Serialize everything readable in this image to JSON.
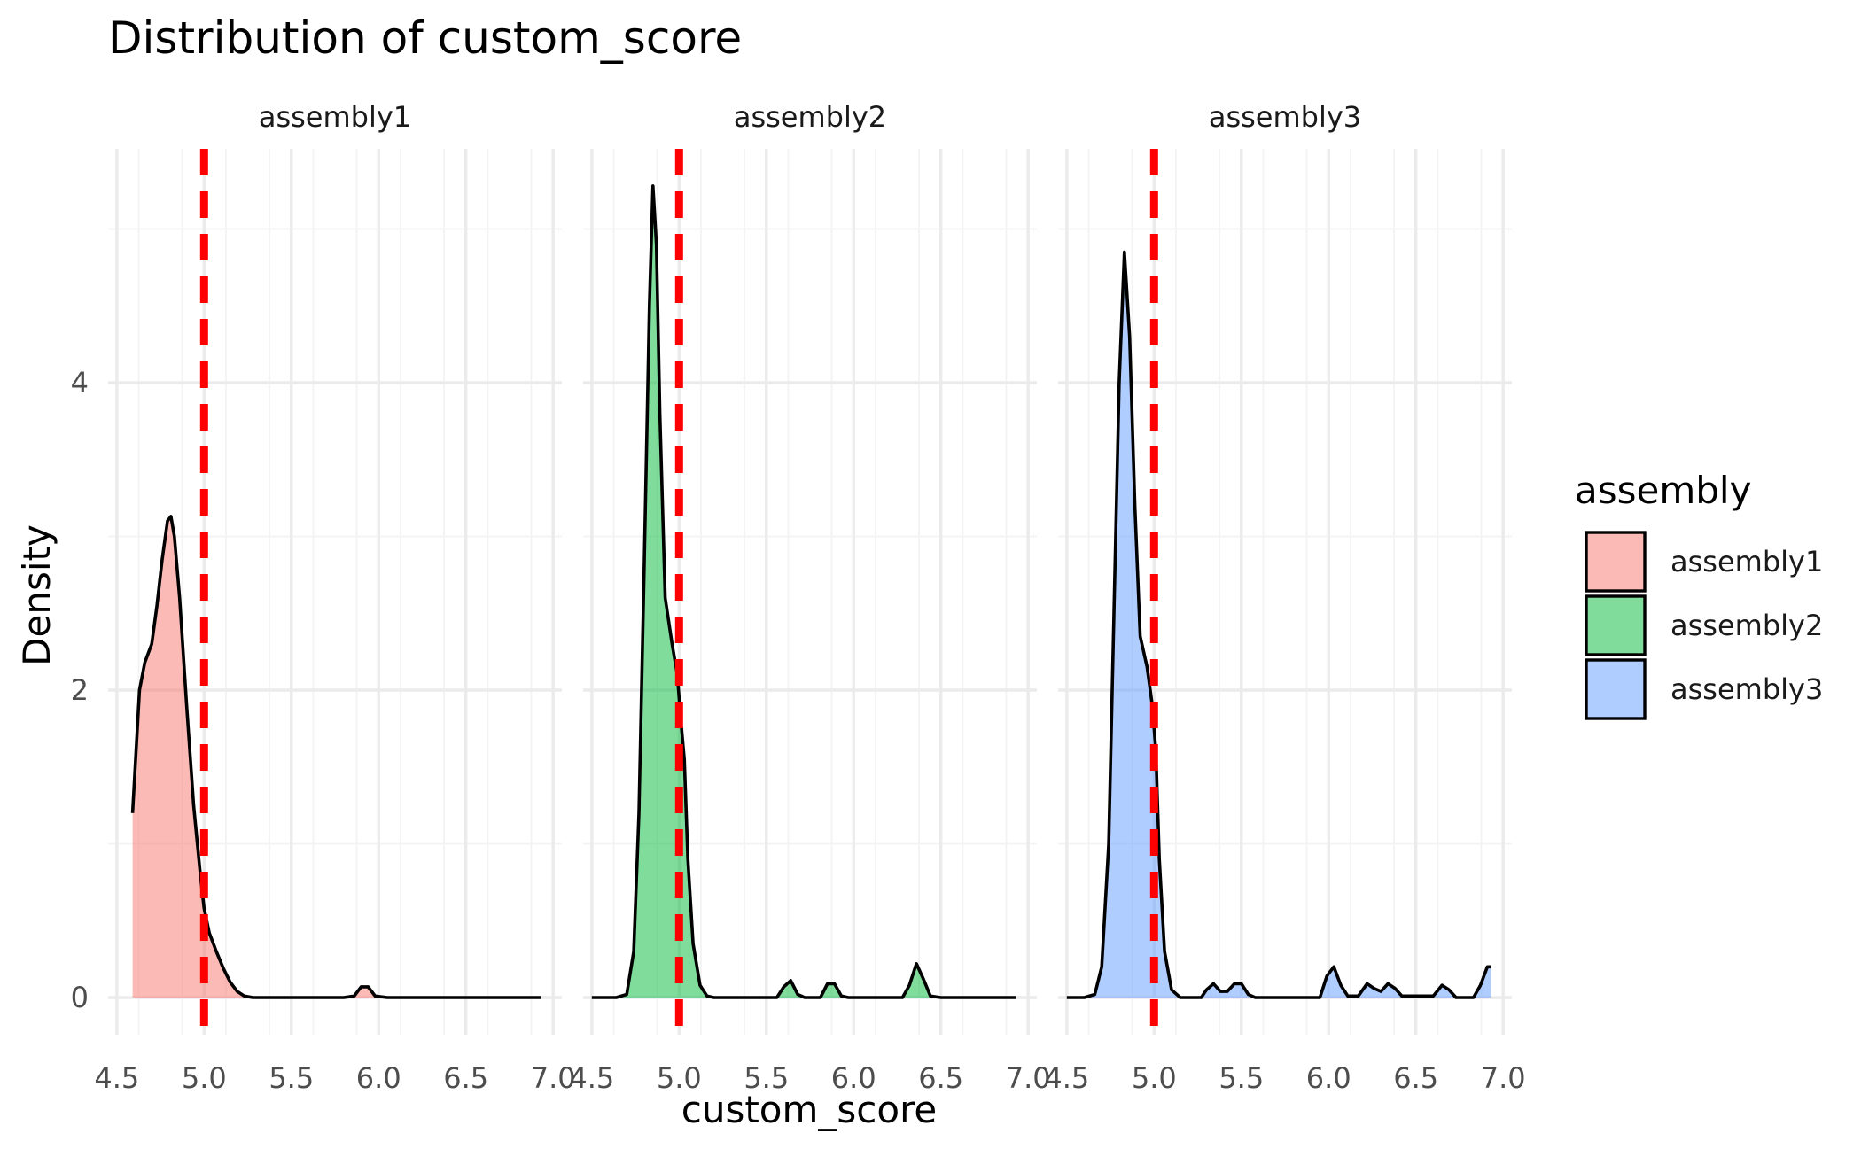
{
  "chart_data": {
    "type": "area",
    "title": "Distribution of custom_score",
    "xlabel": "custom_score",
    "ylabel": "Density",
    "xlim": [
      4.5,
      7.0
    ],
    "ylim": [
      0,
      5.4
    ],
    "x_ticks": [
      4.5,
      5.0,
      5.5,
      6.0,
      6.5,
      7.0
    ],
    "x_tick_labels": [
      "4.5",
      "5.0",
      "5.5",
      "6.0",
      "6.5",
      "7.0"
    ],
    "y_ticks": [
      0,
      2,
      4
    ],
    "y_tick_labels": [
      "0",
      "2",
      "4"
    ],
    "reference_line": {
      "x": 5.0,
      "color": "#ff0000",
      "style": "dashed"
    },
    "grid": true,
    "legend": {
      "title": "assembly",
      "position": "right",
      "items": [
        {
          "label": "assembly1",
          "color": "#f8766d"
        },
        {
          "label": "assembly2",
          "color": "#00ba38"
        },
        {
          "label": "assembly3",
          "color": "#619cff"
        }
      ]
    },
    "panels": [
      {
        "name": "assembly1",
        "color": "#f8766d",
        "points": [
          [
            4.59,
            1.2
          ],
          [
            4.61,
            1.6
          ],
          [
            4.63,
            2.0
          ],
          [
            4.66,
            2.18
          ],
          [
            4.7,
            2.3
          ],
          [
            4.73,
            2.55
          ],
          [
            4.76,
            2.85
          ],
          [
            4.79,
            3.1
          ],
          [
            4.81,
            3.13
          ],
          [
            4.83,
            3.0
          ],
          [
            4.86,
            2.6
          ],
          [
            4.9,
            1.9
          ],
          [
            4.94,
            1.25
          ],
          [
            4.98,
            0.78
          ],
          [
            5.0,
            0.58
          ],
          [
            5.03,
            0.42
          ],
          [
            5.07,
            0.3
          ],
          [
            5.11,
            0.19
          ],
          [
            5.15,
            0.1
          ],
          [
            5.19,
            0.04
          ],
          [
            5.23,
            0.01
          ],
          [
            5.28,
            0.0
          ],
          [
            5.5,
            0.0
          ],
          [
            5.8,
            0.0
          ],
          [
            5.86,
            0.01
          ],
          [
            5.9,
            0.07
          ],
          [
            5.94,
            0.07
          ],
          [
            5.98,
            0.01
          ],
          [
            6.05,
            0.0
          ],
          [
            6.5,
            0.0
          ],
          [
            6.93,
            0.0
          ]
        ]
      },
      {
        "name": "assembly2",
        "color": "#00ba38",
        "points": [
          [
            4.5,
            0.0
          ],
          [
            4.64,
            0.0
          ],
          [
            4.7,
            0.02
          ],
          [
            4.74,
            0.3
          ],
          [
            4.77,
            1.2
          ],
          [
            4.8,
            2.8
          ],
          [
            4.83,
            4.5
          ],
          [
            4.85,
            5.28
          ],
          [
            4.87,
            4.9
          ],
          [
            4.89,
            3.8
          ],
          [
            4.92,
            2.6
          ],
          [
            4.96,
            2.3
          ],
          [
            4.99,
            2.1
          ],
          [
            5.01,
            1.8
          ],
          [
            5.03,
            1.55
          ],
          [
            5.05,
            0.9
          ],
          [
            5.08,
            0.35
          ],
          [
            5.12,
            0.08
          ],
          [
            5.16,
            0.01
          ],
          [
            5.2,
            0.0
          ],
          [
            5.56,
            0.0
          ],
          [
            5.6,
            0.07
          ],
          [
            5.64,
            0.11
          ],
          [
            5.68,
            0.02
          ],
          [
            5.72,
            0.0
          ],
          [
            5.81,
            0.0
          ],
          [
            5.85,
            0.09
          ],
          [
            5.89,
            0.09
          ],
          [
            5.93,
            0.01
          ],
          [
            5.97,
            0.0
          ],
          [
            6.28,
            0.0
          ],
          [
            6.32,
            0.08
          ],
          [
            6.36,
            0.22
          ],
          [
            6.4,
            0.12
          ],
          [
            6.44,
            0.01
          ],
          [
            6.5,
            0.0
          ],
          [
            6.93,
            0.0
          ]
        ]
      },
      {
        "name": "assembly3",
        "color": "#619cff",
        "points": [
          [
            4.5,
            0.0
          ],
          [
            4.6,
            0.0
          ],
          [
            4.66,
            0.02
          ],
          [
            4.7,
            0.2
          ],
          [
            4.74,
            1.0
          ],
          [
            4.77,
            2.5
          ],
          [
            4.8,
            4.0
          ],
          [
            4.83,
            4.85
          ],
          [
            4.86,
            4.3
          ],
          [
            4.89,
            3.2
          ],
          [
            4.92,
            2.35
          ],
          [
            4.96,
            2.15
          ],
          [
            4.99,
            1.9
          ],
          [
            5.01,
            1.6
          ],
          [
            5.03,
            0.9
          ],
          [
            5.06,
            0.3
          ],
          [
            5.1,
            0.05
          ],
          [
            5.15,
            0.0
          ],
          [
            5.27,
            0.0
          ],
          [
            5.3,
            0.05
          ],
          [
            5.34,
            0.09
          ],
          [
            5.38,
            0.04
          ],
          [
            5.42,
            0.04
          ],
          [
            5.46,
            0.09
          ],
          [
            5.5,
            0.09
          ],
          [
            5.54,
            0.02
          ],
          [
            5.58,
            0.0
          ],
          [
            5.95,
            0.0
          ],
          [
            5.99,
            0.14
          ],
          [
            6.03,
            0.2
          ],
          [
            6.07,
            0.08
          ],
          [
            6.11,
            0.01
          ],
          [
            6.17,
            0.01
          ],
          [
            6.22,
            0.09
          ],
          [
            6.26,
            0.06
          ],
          [
            6.3,
            0.04
          ],
          [
            6.34,
            0.09
          ],
          [
            6.38,
            0.06
          ],
          [
            6.42,
            0.01
          ],
          [
            6.6,
            0.01
          ],
          [
            6.65,
            0.08
          ],
          [
            6.69,
            0.05
          ],
          [
            6.73,
            0.0
          ],
          [
            6.83,
            0.0
          ],
          [
            6.87,
            0.08
          ],
          [
            6.91,
            0.2
          ],
          [
            6.93,
            0.2
          ]
        ]
      }
    ]
  }
}
